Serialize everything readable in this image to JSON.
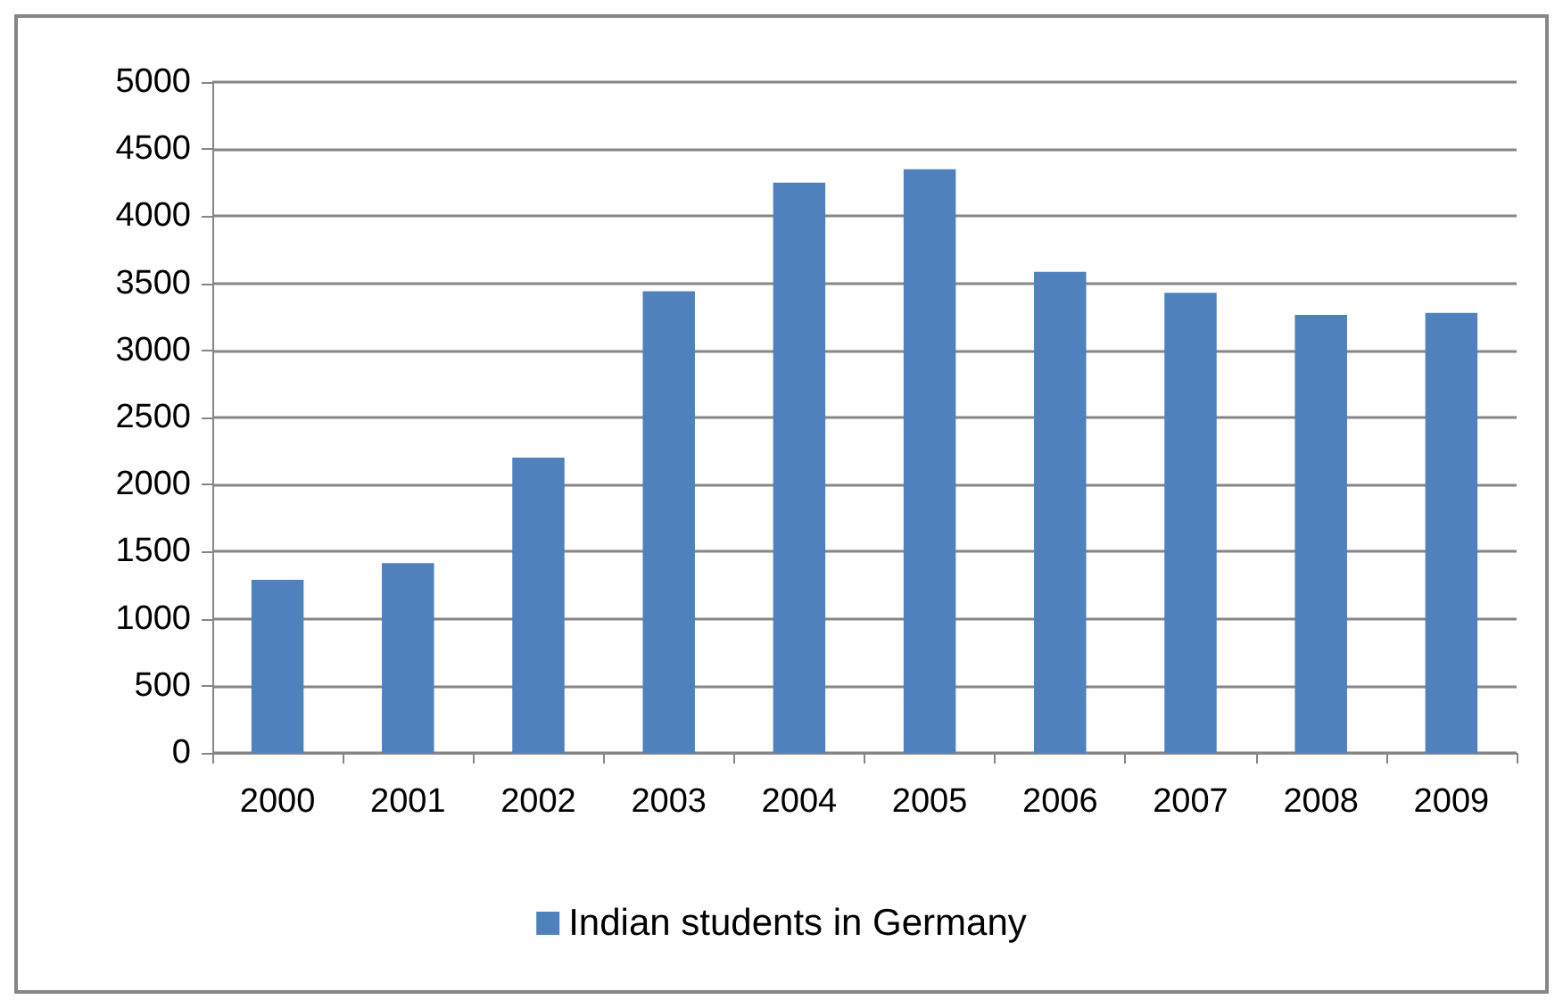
{
  "chart_data": {
    "type": "bar",
    "categories": [
      "2000",
      "2001",
      "2002",
      "2003",
      "2004",
      "2005",
      "2006",
      "2007",
      "2008",
      "2009"
    ],
    "series": [
      {
        "name": "Indian students in Germany",
        "color": "#4f81bd",
        "values": [
          1290,
          1415,
          2200,
          3440,
          4250,
          4350,
          3585,
          3430,
          3265,
          3280
        ]
      }
    ],
    "ylim": [
      0,
      5000
    ],
    "yticks": [
      0,
      500,
      1000,
      1500,
      2000,
      2500,
      3000,
      3500,
      4000,
      4500,
      5000
    ],
    "grid": "y",
    "legend": "bottom"
  }
}
